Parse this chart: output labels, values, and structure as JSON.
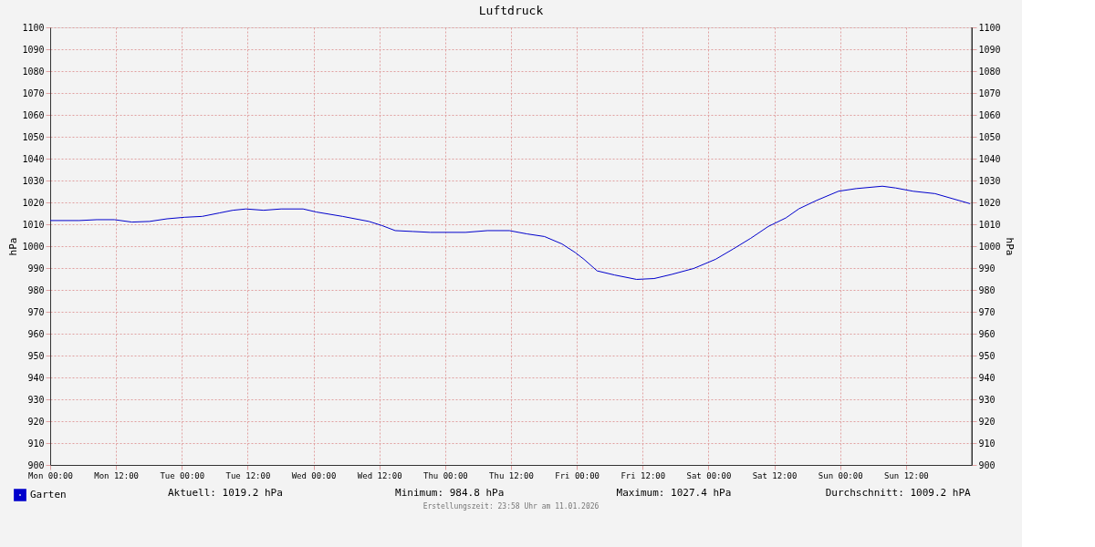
{
  "chart_data": {
    "type": "line",
    "title": "Luftdruck",
    "ylabel": "hPa",
    "y2label": "hPa",
    "x": [
      "2026-01-05T00:00",
      "2026-01-05T05:18",
      "2026-01-05T08:30",
      "2026-01-05T11:42",
      "2026-01-05T14:54",
      "2026-01-05T18:06",
      "2026-01-05T21:18",
      "2026-01-06T00:30",
      "2026-01-06T03:42",
      "2026-01-06T06:54",
      "2026-01-06T09:18",
      "2026-01-06T11:42",
      "2026-01-06T14:54",
      "2026-01-06T18:06",
      "2026-01-06T22:06",
      "2026-01-07T00:30",
      "2026-01-07T05:18",
      "2026-01-07T10:06",
      "2026-01-07T12:30",
      "2026-01-07T14:54",
      "2026-01-07T18:06",
      "2026-01-07T21:18",
      "2026-01-08T03:42",
      "2026-01-08T07:42",
      "2026-01-08T11:42",
      "2026-01-08T14:54",
      "2026-01-08T18:06",
      "2026-01-08T21:18",
      "2026-01-08T23:42",
      "2026-01-09T01:18",
      "2026-01-09T03:42",
      "2026-01-09T06:54",
      "2026-01-09T10:54",
      "2026-01-09T14:06",
      "2026-01-09T17:18",
      "2026-01-09T21:18",
      "2026-01-10T01:18",
      "2026-01-10T04:30",
      "2026-01-10T07:42",
      "2026-01-10T10:54",
      "2026-01-10T14:06",
      "2026-01-10T16:30",
      "2026-01-10T19:42",
      "2026-01-10T23:42",
      "2026-01-11T02:54",
      "2026-01-11T07:42",
      "2026-01-11T10:06",
      "2026-01-11T13:18",
      "2026-01-11T17:18",
      "2026-01-11T20:30",
      "2026-01-11T23:42"
    ],
    "series": [
      {
        "name": "Garten",
        "color": "#0000cc",
        "values": [
          1011.7,
          1011.7,
          1012.1,
          1012.1,
          1011.0,
          1011.3,
          1012.5,
          1013.2,
          1013.6,
          1015.2,
          1016.4,
          1017.0,
          1016.4,
          1017.0,
          1017.0,
          1015.6,
          1013.6,
          1011.3,
          1009.4,
          1007.1,
          1006.7,
          1006.3,
          1006.3,
          1007.1,
          1007.1,
          1005.6,
          1004.4,
          1001.0,
          997.1,
          994.0,
          988.7,
          986.8,
          984.8,
          985.2,
          987.1,
          989.8,
          994.0,
          998.7,
          1003.6,
          1009.0,
          1012.9,
          1017.1,
          1020.9,
          1025.1,
          1026.3,
          1027.4,
          1026.6,
          1025.1,
          1024.0,
          1021.7,
          1019.4
        ]
      }
    ],
    "xlim": [
      "2026-01-05T00:00",
      "2026-01-12T00:00"
    ],
    "xticks": [
      {
        "value": "2026-01-05T00:00",
        "label": "Mon 00:00"
      },
      {
        "value": "2026-01-05T12:00",
        "label": "Mon 12:00"
      },
      {
        "value": "2026-01-06T00:00",
        "label": "Tue 00:00"
      },
      {
        "value": "2026-01-06T12:00",
        "label": "Tue 12:00"
      },
      {
        "value": "2026-01-07T00:00",
        "label": "Wed 00:00"
      },
      {
        "value": "2026-01-07T12:00",
        "label": "Wed 12:00"
      },
      {
        "value": "2026-01-08T00:00",
        "label": "Thu 00:00"
      },
      {
        "value": "2026-01-08T12:00",
        "label": "Thu 12:00"
      },
      {
        "value": "2026-01-09T00:00",
        "label": "Fri 00:00"
      },
      {
        "value": "2026-01-09T12:00",
        "label": "Fri 12:00"
      },
      {
        "value": "2026-01-10T00:00",
        "label": "Sat 00:00"
      },
      {
        "value": "2026-01-10T12:00",
        "label": "Sat 12:00"
      },
      {
        "value": "2026-01-11T00:00",
        "label": "Sun 00:00"
      },
      {
        "value": "2026-01-11T12:00",
        "label": "Sun 12:00"
      }
    ],
    "ylim": [
      900,
      1100
    ],
    "yticks": [
      900,
      910,
      920,
      930,
      940,
      950,
      960,
      970,
      980,
      990,
      1000,
      1010,
      1020,
      1030,
      1040,
      1050,
      1060,
      1070,
      1080,
      1090,
      1100
    ],
    "y2lim": [
      900,
      1100
    ],
    "y2ticks": [
      900,
      910,
      920,
      930,
      940,
      950,
      960,
      970,
      980,
      990,
      1000,
      1010,
      1020,
      1030,
      1040,
      1050,
      1060,
      1070,
      1080,
      1090,
      1100
    ],
    "grid": true,
    "legend": "bottom left",
    "marker": "none",
    "line_style": "solid",
    "annotations": [
      "Aktuell: 1019.2 hPa",
      "Minimum: 984.8 hPa",
      "Maximum: 1027.4 hPa",
      "Durchschnitt: 1009.2 hPA",
      "Erstellungszeit: 23:58 Uhr am 11.01.2026"
    ]
  }
}
